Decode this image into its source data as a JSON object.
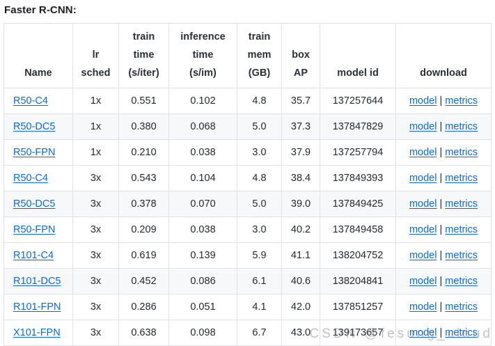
{
  "page": {
    "title": "Faster R-CNN:"
  },
  "watermark": {
    "text": "CSDN @fesung_cloud"
  },
  "colors": {
    "link": "#0969da",
    "border": "#dfe2e5",
    "stripe": "#f6f8fa",
    "text": "#24292e"
  },
  "table": {
    "headers": [
      {
        "id": "name",
        "label": "Name"
      },
      {
        "id": "lr-sched",
        "label": "lr\nsched"
      },
      {
        "id": "train-time",
        "label": "train\ntime\n(s/iter)"
      },
      {
        "id": "inference-time",
        "label": "inference\ntime\n(s/im)"
      },
      {
        "id": "train-mem",
        "label": "train\nmem\n(GB)"
      },
      {
        "id": "box-ap",
        "label": "box\nAP"
      },
      {
        "id": "model-id",
        "label": "model id"
      },
      {
        "id": "download",
        "label": "download"
      }
    ],
    "download_links": {
      "model_label": "model",
      "separator": " | ",
      "metrics_label": "metrics"
    },
    "rows": [
      {
        "name": "R50-C4",
        "lr_sched": "1x",
        "train_time": "0.551",
        "inference_time": "0.102",
        "train_mem": "4.8",
        "box_ap": "35.7",
        "model_id": "137257644"
      },
      {
        "name": "R50-DC5",
        "lr_sched": "1x",
        "train_time": "0.380",
        "inference_time": "0.068",
        "train_mem": "5.0",
        "box_ap": "37.3",
        "model_id": "137847829"
      },
      {
        "name": "R50-FPN",
        "lr_sched": "1x",
        "train_time": "0.210",
        "inference_time": "0.038",
        "train_mem": "3.0",
        "box_ap": "37.9",
        "model_id": "137257794"
      },
      {
        "name": "R50-C4",
        "lr_sched": "3x",
        "train_time": "0.543",
        "inference_time": "0.104",
        "train_mem": "4.8",
        "box_ap": "38.4",
        "model_id": "137849393"
      },
      {
        "name": "R50-DC5",
        "lr_sched": "3x",
        "train_time": "0.378",
        "inference_time": "0.070",
        "train_mem": "5.0",
        "box_ap": "39.0",
        "model_id": "137849425"
      },
      {
        "name": "R50-FPN",
        "lr_sched": "3x",
        "train_time": "0.209",
        "inference_time": "0.038",
        "train_mem": "3.0",
        "box_ap": "40.2",
        "model_id": "137849458"
      },
      {
        "name": "R101-C4",
        "lr_sched": "3x",
        "train_time": "0.619",
        "inference_time": "0.139",
        "train_mem": "5.9",
        "box_ap": "41.1",
        "model_id": "138204752"
      },
      {
        "name": "R101-DC5",
        "lr_sched": "3x",
        "train_time": "0.452",
        "inference_time": "0.086",
        "train_mem": "6.1",
        "box_ap": "40.6",
        "model_id": "138204841"
      },
      {
        "name": "R101-FPN",
        "lr_sched": "3x",
        "train_time": "0.286",
        "inference_time": "0.051",
        "train_mem": "4.1",
        "box_ap": "42.0",
        "model_id": "137851257"
      },
      {
        "name": "X101-FPN",
        "lr_sched": "3x",
        "train_time": "0.638",
        "inference_time": "0.098",
        "train_mem": "6.7",
        "box_ap": "43.0",
        "model_id": "139173657"
      }
    ]
  }
}
